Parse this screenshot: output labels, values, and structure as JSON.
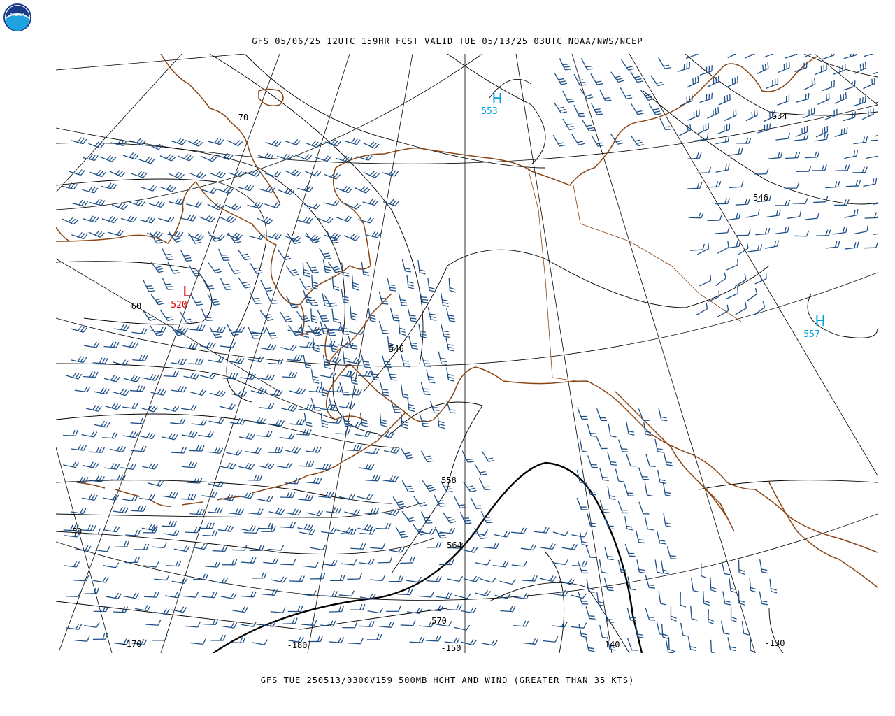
{
  "header": {
    "title": "GFS 05/06/25 12UTC 159HR FCST VALID TUE 05/13/25 03UTC NOAA/NWS/NCEP",
    "logo_text": "NOAA"
  },
  "footer": {
    "caption": "GFS TUE 250513/0300V159 500MB HGHT AND WIND (GREATER THAN 35 KTS)"
  },
  "map": {
    "region": "Alaska / Bering Sea / North Pacific",
    "level": "500MB",
    "colors": {
      "coastline": "#8B4513",
      "barbs": "#1E4F86",
      "high": "#00A0E0",
      "low": "#E00000",
      "contour": "#000000"
    },
    "latitude_labels": [
      "70",
      "60",
      "50"
    ],
    "longitude_labels": [
      "-170",
      "-180",
      "-150",
      "-140",
      "-130"
    ],
    "contour_labels": [
      "534",
      "546",
      "546",
      "558",
      "564",
      "570"
    ],
    "centers": [
      {
        "type": "H",
        "value": "553"
      },
      {
        "type": "L",
        "value": "520"
      },
      {
        "type": "H",
        "value": "557"
      }
    ]
  }
}
